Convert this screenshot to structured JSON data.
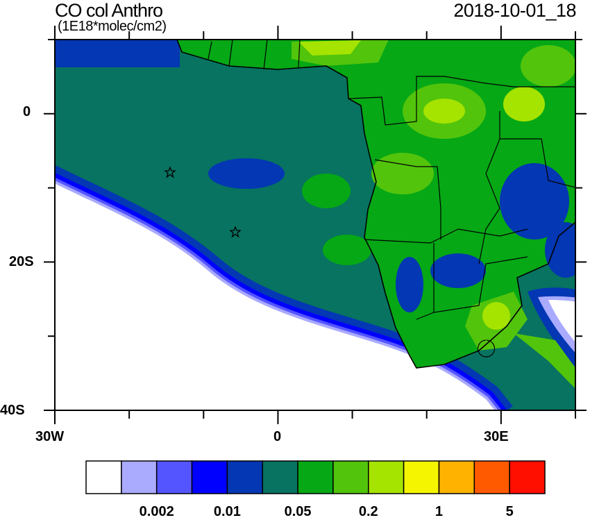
{
  "header": {
    "title": "CO col Anthro",
    "units": "(1E18*molec/cm2)",
    "timestamp": "2018-10-01_18"
  },
  "map": {
    "region": "South-West Africa and South Atlantic",
    "lon_range": [
      -30,
      40
    ],
    "lat_range": [
      -40,
      10
    ],
    "x_tick_labels": [
      "30W",
      "0",
      "30E"
    ],
    "y_tick_labels": [
      "0",
      "20S",
      "40S"
    ],
    "markers": [
      {
        "type": "star",
        "lon": -14.5,
        "lat": -8
      },
      {
        "type": "star",
        "lon": -5.7,
        "lat": -16
      }
    ]
  },
  "colorbar": {
    "colors": [
      "#ffffff",
      "#aaaaff",
      "#5555ff",
      "#0000ff",
      "#0337b3",
      "#077360",
      "#06a815",
      "#52c40c",
      "#a5e300",
      "#f5f500",
      "#ffb300",
      "#ff5a00",
      "#ff0f00"
    ],
    "labels": [
      "0.002",
      "0.01",
      "0.05",
      "0.2",
      "1",
      "5"
    ]
  }
}
